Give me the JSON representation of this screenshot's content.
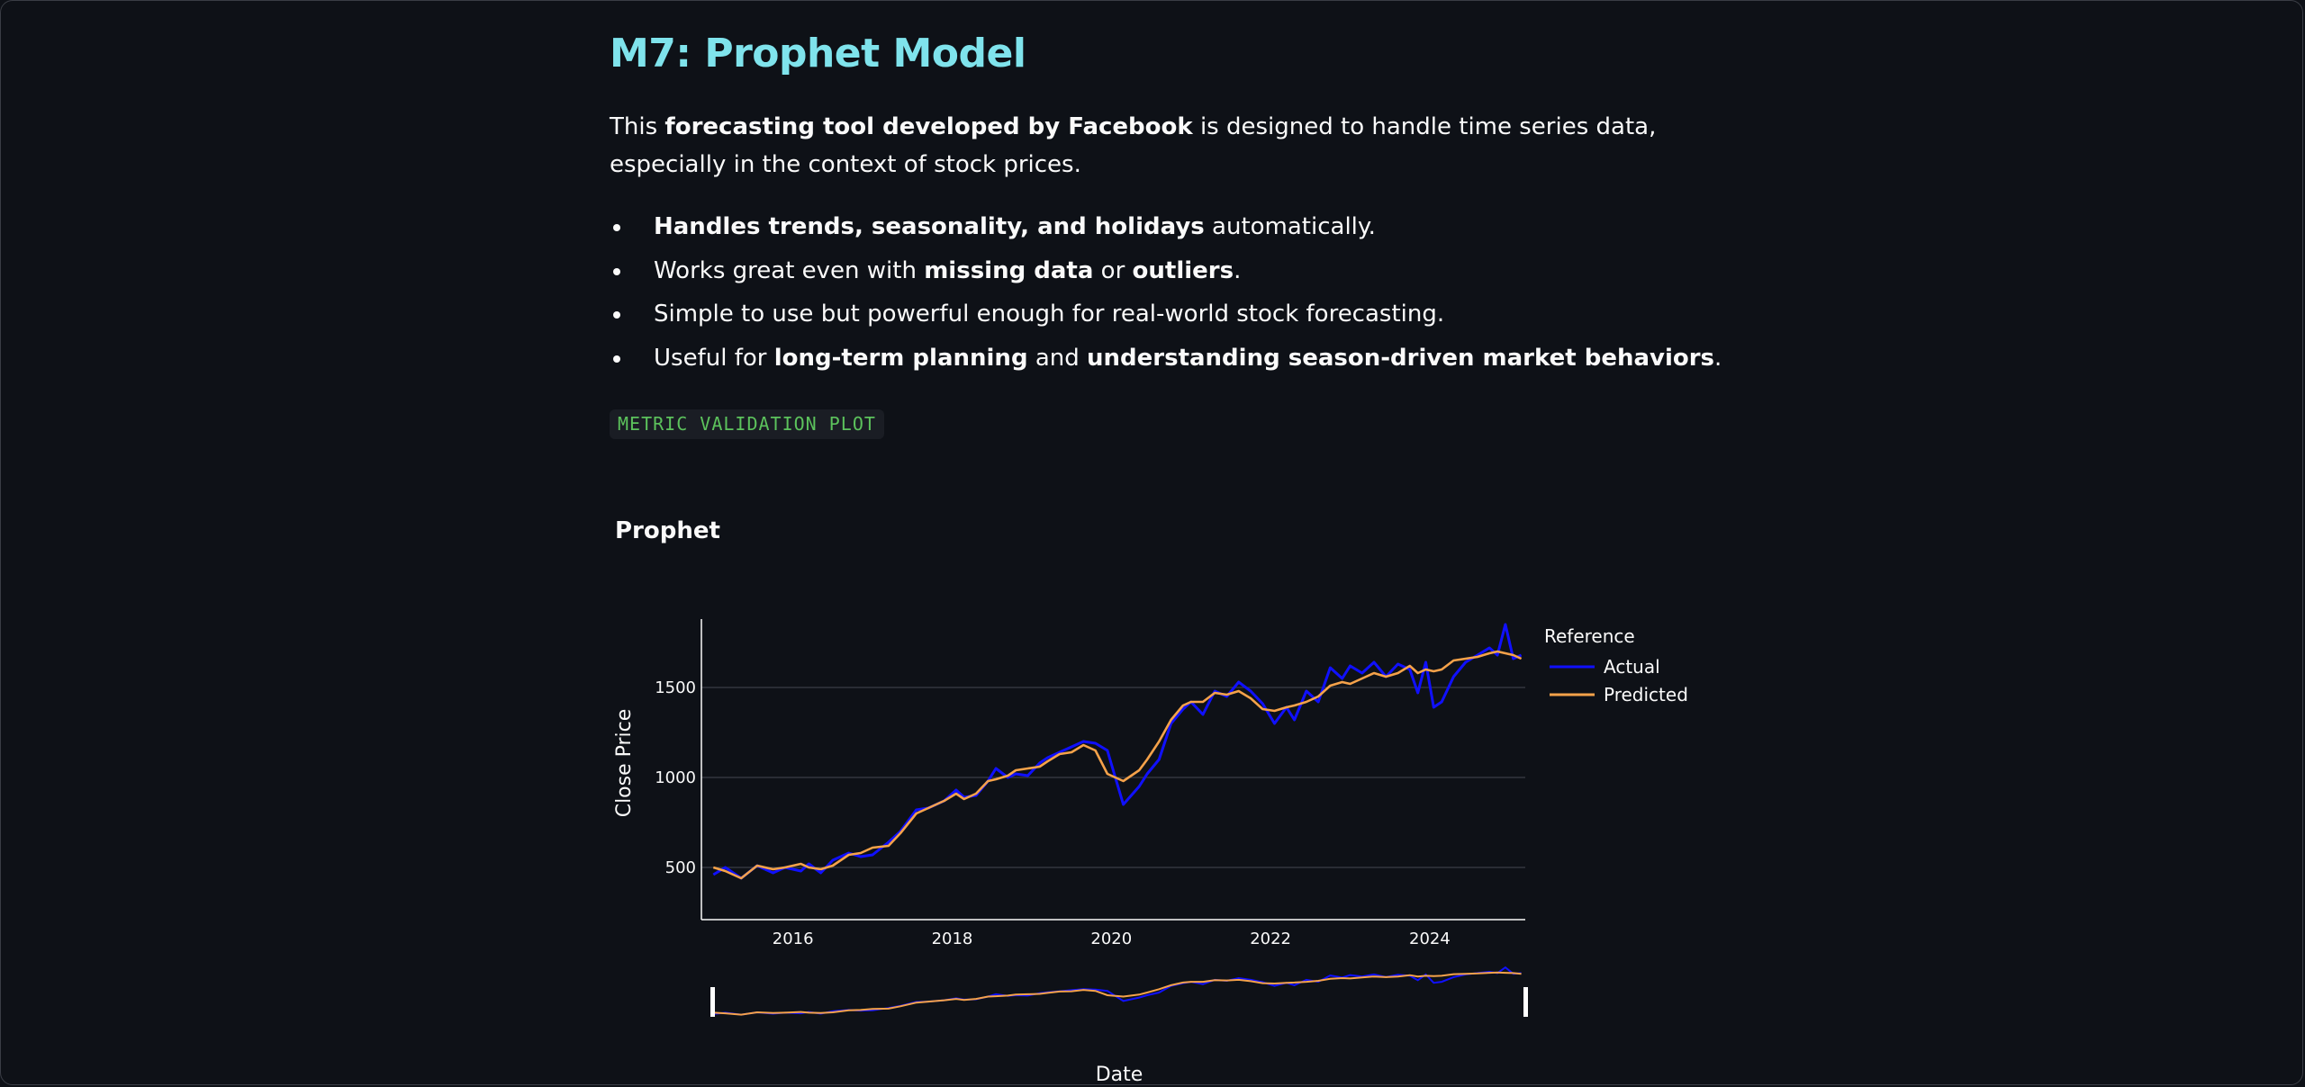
{
  "page": {
    "title": "M7: Prophet Model",
    "intro": {
      "p1": "This ",
      "b1": "forecasting tool developed by Facebook",
      "p2": " is designed to handle time series data, especially in the context of stock prices."
    },
    "bullets": [
      {
        "b1": "Handles trends, seasonality, and holidays",
        "t1": " automatically.",
        "b2": "",
        "t2": "",
        "b3": "",
        "t3": ""
      },
      {
        "t0": "Works great even with ",
        "b1": "missing data",
        "t1": " or ",
        "b2": "outliers",
        "t2": "."
      },
      {
        "t0": "Simple to use but powerful enough for real-world stock forecasting."
      },
      {
        "t0": "Useful for ",
        "b1": "long-term planning",
        "t1": " and ",
        "b2": "understanding season-driven market behaviors",
        "t2": "."
      }
    ],
    "code_label": "METRIC VALIDATION PLOT"
  },
  "chart_data": {
    "type": "line",
    "title": "Prophet",
    "xlabel": "Date",
    "ylabel": "Close Price",
    "xlim": [
      2014.85,
      2025.2
    ],
    "ylim": [
      210,
      1880
    ],
    "x_ticks": [
      "2016",
      "2018",
      "2020",
      "2022",
      "2024"
    ],
    "y_ticks": [
      500,
      1000,
      1500
    ],
    "grid": true,
    "legend": {
      "title": "Reference",
      "placement": "right"
    },
    "has_range_slider": true,
    "series": [
      {
        "name": "Actual",
        "color": "#1010ff",
        "x": [
          2015.0,
          2015.15,
          2015.35,
          2015.55,
          2015.75,
          2015.9,
          2016.1,
          2016.2,
          2016.35,
          2016.5,
          2016.7,
          2016.85,
          2017.0,
          2017.2,
          2017.35,
          2017.55,
          2017.7,
          2017.9,
          2018.05,
          2018.15,
          2018.3,
          2018.45,
          2018.55,
          2018.7,
          2018.8,
          2018.95,
          2019.1,
          2019.2,
          2019.35,
          2019.5,
          2019.65,
          2019.8,
          2019.95,
          2020.05,
          2020.15,
          2020.25,
          2020.35,
          2020.45,
          2020.6,
          2020.75,
          2020.9,
          2021.0,
          2021.15,
          2021.3,
          2021.45,
          2021.6,
          2021.75,
          2021.9,
          2022.05,
          2022.2,
          2022.3,
          2022.45,
          2022.6,
          2022.75,
          2022.9,
          2023.0,
          2023.15,
          2023.3,
          2023.45,
          2023.6,
          2023.75,
          2023.85,
          2023.95,
          2024.05,
          2024.15,
          2024.3,
          2024.45,
          2024.6,
          2024.75,
          2024.85,
          2024.95,
          2025.05,
          2025.15
        ],
        "y": [
          460,
          500,
          440,
          510,
          470,
          500,
          480,
          520,
          470,
          540,
          580,
          560,
          570,
          640,
          700,
          820,
          830,
          870,
          930,
          890,
          900,
          980,
          1050,
          1000,
          1020,
          1010,
          1080,
          1110,
          1140,
          1170,
          1200,
          1190,
          1150,
          1000,
          850,
          900,
          950,
          1020,
          1100,
          1300,
          1380,
          1420,
          1350,
          1480,
          1450,
          1530,
          1480,
          1410,
          1300,
          1390,
          1320,
          1480,
          1420,
          1610,
          1550,
          1620,
          1580,
          1640,
          1560,
          1630,
          1600,
          1470,
          1640,
          1390,
          1420,
          1560,
          1640,
          1680,
          1720,
          1680,
          1850,
          1660,
          1680
        ]
      },
      {
        "name": "Predicted",
        "color": "#f5a24a",
        "x": [
          2015.0,
          2015.15,
          2015.35,
          2015.55,
          2015.75,
          2015.9,
          2016.1,
          2016.2,
          2016.35,
          2016.5,
          2016.7,
          2016.85,
          2017.0,
          2017.2,
          2017.35,
          2017.55,
          2017.7,
          2017.9,
          2018.05,
          2018.15,
          2018.3,
          2018.45,
          2018.55,
          2018.7,
          2018.8,
          2018.95,
          2019.1,
          2019.2,
          2019.35,
          2019.5,
          2019.65,
          2019.8,
          2019.95,
          2020.05,
          2020.15,
          2020.25,
          2020.35,
          2020.45,
          2020.6,
          2020.75,
          2020.9,
          2021.0,
          2021.15,
          2021.3,
          2021.45,
          2021.6,
          2021.75,
          2021.9,
          2022.05,
          2022.2,
          2022.3,
          2022.45,
          2022.6,
          2022.75,
          2022.9,
          2023.0,
          2023.15,
          2023.3,
          2023.45,
          2023.6,
          2023.75,
          2023.85,
          2023.95,
          2024.05,
          2024.15,
          2024.3,
          2024.45,
          2024.6,
          2024.75,
          2024.85,
          2024.95,
          2025.05,
          2025.15
        ],
        "y": [
          500,
          480,
          440,
          510,
          490,
          500,
          520,
          500,
          490,
          510,
          570,
          580,
          610,
          620,
          690,
          800,
          830,
          870,
          910,
          880,
          910,
          980,
          990,
          1010,
          1040,
          1050,
          1060,
          1090,
          1130,
          1140,
          1180,
          1150,
          1020,
          1000,
          980,
          1010,
          1040,
          1100,
          1200,
          1320,
          1400,
          1420,
          1420,
          1470,
          1460,
          1480,
          1440,
          1380,
          1370,
          1390,
          1400,
          1420,
          1450,
          1510,
          1530,
          1520,
          1550,
          1580,
          1560,
          1580,
          1620,
          1580,
          1600,
          1590,
          1600,
          1650,
          1660,
          1670,
          1690,
          1700,
          1690,
          1680,
          1660
        ]
      }
    ]
  }
}
